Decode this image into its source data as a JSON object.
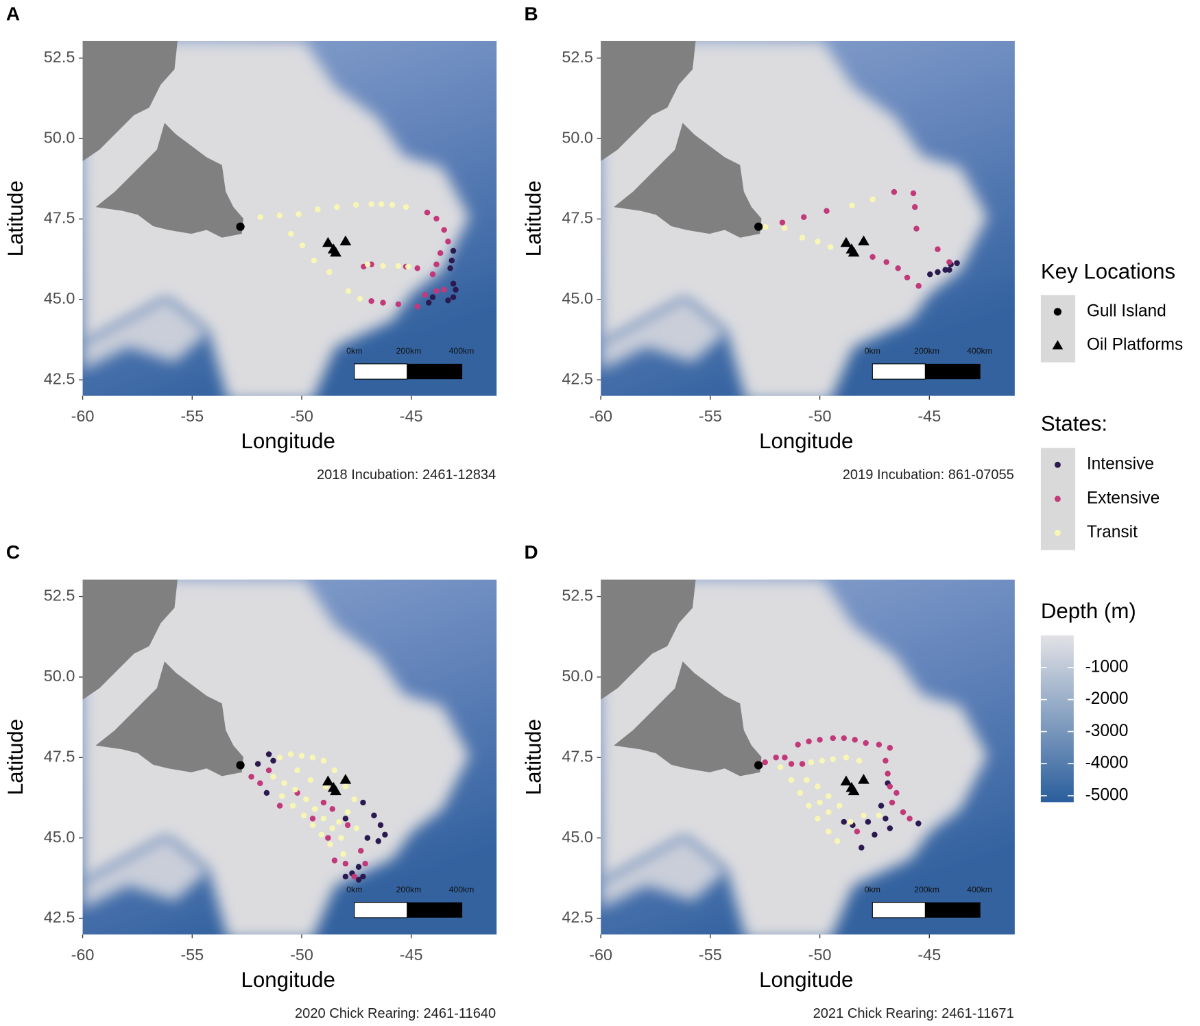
{
  "chart_data": [
    {
      "type": "scatter",
      "panel": "A",
      "caption": "2018 Incubation: 2461-12834",
      "x_label": "Longitude",
      "y_label": "Latitude",
      "xlim": [
        -60,
        -41.1
      ],
      "ylim": [
        42,
        53.03
      ],
      "xticks": [
        -60,
        -55,
        -50,
        -45
      ],
      "yticks": [
        42.5,
        {
          "value": 45,
          "label": "45.0"
        },
        47.5,
        {
          "value": 50,
          "label": "50.0"
        },
        52.5
      ],
      "scale_bar": [
        "0km",
        "200km",
        "400km"
      ],
      "series": [
        {
          "name": "Intensive",
          "color": "#2b1a4f",
          "x": [
            -43.08,
            -43.15,
            -43.22,
            -43.08,
            -42.97,
            -43.08,
            -43.32,
            -44.2,
            -44.02
          ],
          "values": [
            46.51,
            46.21,
            45.97,
            45.49,
            45.3,
            45.07,
            44.97,
            44.9,
            45.07
          ]
        },
        {
          "name": "Extensive",
          "color": "#c2397a",
          "x": [
            -44.27,
            -43.85,
            -43.5,
            -43.32,
            -43.67,
            -43.85,
            -44.02,
            -44.72,
            -45.24,
            -46.82,
            -47.17,
            -46.82,
            -46.29,
            -45.59,
            -44.72,
            -44.37,
            -43.85,
            -43.5
          ],
          "values": [
            47.7,
            47.51,
            47.16,
            46.8,
            46.44,
            46.09,
            45.78,
            45.97,
            46.02,
            46.09,
            46.02,
            44.95,
            44.9,
            44.85,
            44.78,
            45.14,
            45.26,
            45.3
          ]
        },
        {
          "name": "Transit",
          "color": "#f8f6b4",
          "x": [
            -51.89,
            -51.01,
            -50.14,
            -49.27,
            -48.39,
            -47.52,
            -46.82,
            -46.36,
            -45.87,
            -45.24,
            -50.49,
            -49.97,
            -49.44,
            -48.74,
            -47.87,
            -47.34,
            -46.99,
            -46.29,
            -45.59,
            -45.14
          ],
          "values": [
            47.56,
            47.61,
            47.65,
            47.8,
            47.87,
            47.94,
            47.96,
            47.96,
            47.94,
            47.87,
            47.04,
            46.68,
            46.21,
            45.85,
            45.26,
            45.02,
            46.09,
            46.04,
            46.04,
            46.02
          ]
        },
        {
          "name": "Gull Island",
          "marker": "circle",
          "color": "#000000",
          "x": [
            -52.8
          ],
          "values": [
            47.26
          ]
        },
        {
          "name": "Oil Platforms",
          "marker": "triangle",
          "color": "#000000",
          "x": [
            -48.8,
            -48.55,
            -48.45,
            -48.0
          ],
          "values": [
            46.75,
            46.55,
            46.45,
            46.8
          ]
        }
      ]
    },
    {
      "type": "scatter",
      "panel": "B",
      "caption": "2019 Incubation: 861-07055",
      "x_label": "Longitude",
      "y_label": "Latitude",
      "xlim": [
        -60,
        -41.1
      ],
      "ylim": [
        42,
        53.03
      ],
      "xticks": [
        -60,
        -55,
        -50,
        -45
      ],
      "yticks": [
        42.5,
        {
          "value": 45,
          "label": "45.0"
        },
        47.5,
        {
          "value": 50,
          "label": "50.0"
        },
        52.5
      ],
      "scale_bar": [
        "0km",
        "200km",
        "400km"
      ],
      "series": [
        {
          "name": "Intensive",
          "color": "#2b1a4f",
          "x": [
            -44.97,
            -44.62,
            -44.27,
            -44.02,
            -43.74,
            -44.09
          ],
          "values": [
            45.78,
            45.85,
            45.92,
            46.09,
            46.13,
            45.92
          ]
        },
        {
          "name": "Extensive",
          "color": "#c2397a",
          "x": [
            -51.71,
            -50.73,
            -49.69,
            -46.61,
            -45.73,
            -45.66,
            -45.59,
            -44.62,
            -44.09,
            -47.59,
            -46.96,
            -46.43,
            -46.01,
            -45.49
          ],
          "values": [
            47.39,
            47.56,
            47.75,
            48.34,
            48.3,
            47.87,
            47.2,
            46.56,
            46.16,
            46.32,
            46.16,
            45.97,
            45.68,
            45.42
          ]
        },
        {
          "name": "Transit",
          "color": "#f8f6b4",
          "x": [
            -52.48,
            -51.61,
            -50.8,
            -50.1,
            -49.51,
            -48.53,
            -47.59
          ],
          "values": [
            47.25,
            47.22,
            46.92,
            46.8,
            46.63,
            47.92,
            48.11
          ]
        },
        {
          "name": "Gull Island",
          "marker": "circle",
          "color": "#000000",
          "x": [
            -52.8
          ],
          "values": [
            47.26
          ]
        },
        {
          "name": "Oil Platforms",
          "marker": "triangle",
          "color": "#000000",
          "x": [
            -48.8,
            -48.55,
            -48.45,
            -48.0
          ],
          "values": [
            46.75,
            46.55,
            46.45,
            46.8
          ]
        }
      ]
    },
    {
      "type": "scatter",
      "panel": "C",
      "caption": "2020 Chick Rearing: 2461-11640",
      "x_label": "Longitude",
      "y_label": "Latitude",
      "xlim": [
        -60,
        -41.1
      ],
      "ylim": [
        42,
        53.03
      ],
      "xticks": [
        -60,
        -55,
        -50,
        -45
      ],
      "yticks": [
        42.5,
        {
          "value": 45,
          "label": "45.0"
        },
        47.5,
        {
          "value": 50,
          "label": "50.0"
        },
        52.5
      ],
      "scale_bar": [
        "0km",
        "200km",
        "400km"
      ],
      "series": [
        {
          "name": "Intensive",
          "color": "#2b1a4f",
          "x": [
            -51.5,
            -51.3,
            -52.0,
            -51.6,
            -47.2,
            -46.7,
            -46.4,
            -46.2,
            -46.5,
            -47.0,
            -47.4,
            -47.7,
            -47.4,
            -48.0,
            -47.2,
            -48.0
          ],
          "values": [
            47.6,
            47.4,
            47.3,
            46.4,
            46.1,
            45.7,
            45.4,
            45.1,
            44.9,
            45.0,
            43.7,
            43.9,
            44.1,
            43.8,
            43.8,
            45.6
          ]
        },
        {
          "name": "Extensive",
          "color": "#c2397a",
          "x": [
            -52.3,
            -51.9,
            -51.5,
            -51.0,
            -50.2,
            -49.5,
            -48.5,
            -48.0,
            -47.6,
            -48.8,
            -47.9,
            -47.3,
            -47.1,
            -49.0,
            -48.6
          ],
          "values": [
            46.9,
            46.7,
            47.1,
            46.0,
            46.4,
            45.6,
            44.3,
            44.2,
            43.8,
            45.0,
            45.4,
            44.6,
            44.2,
            46.1,
            45.9
          ]
        },
        {
          "name": "Transit",
          "color": "#f8f6b4",
          "x": [
            -51.0,
            -50.5,
            -50.0,
            -49.5,
            -49.0,
            -48.5,
            -48.0,
            -47.6,
            -51.3,
            -50.8,
            -50.3,
            -49.8,
            -49.4,
            -49.0,
            -48.6,
            -48.2,
            -50.9,
            -50.4,
            -49.9,
            -49.5,
            -49.1,
            -48.7,
            -48.3,
            -47.9,
            -48.9,
            -49.6,
            -50.2,
            -47.5,
            -48.1
          ],
          "values": [
            47.5,
            47.6,
            47.55,
            47.5,
            47.4,
            47.1,
            46.6,
            46.2,
            46.9,
            46.7,
            46.5,
            46.2,
            45.9,
            45.6,
            45.3,
            45.0,
            46.3,
            46.0,
            45.7,
            45.4,
            45.1,
            44.8,
            45.5,
            45.8,
            46.6,
            46.8,
            47.1,
            45.3,
            44.5
          ]
        },
        {
          "name": "Gull Island",
          "marker": "circle",
          "color": "#000000",
          "x": [
            -52.8
          ],
          "values": [
            47.26
          ]
        },
        {
          "name": "Oil Platforms",
          "marker": "triangle",
          "color": "#000000",
          "x": [
            -48.8,
            -48.55,
            -48.45,
            -48.0
          ],
          "values": [
            46.75,
            46.55,
            46.45,
            46.8
          ]
        }
      ]
    },
    {
      "type": "scatter",
      "panel": "D",
      "caption": "2021 Chick Rearing: 2461-11671",
      "x_label": "Longitude",
      "y_label": "Latitude",
      "xlim": [
        -60,
        -41.1
      ],
      "ylim": [
        42,
        53.03
      ],
      "xticks": [
        -60,
        -55,
        -50,
        -45
      ],
      "yticks": [
        42.5,
        {
          "value": 45,
          "label": "45.0"
        },
        47.5,
        {
          "value": 50,
          "label": "50.0"
        },
        52.5
      ],
      "scale_bar": [
        "0km",
        "200km",
        "400km"
      ],
      "series": [
        {
          "name": "Intensive",
          "color": "#2b1a4f",
          "x": [
            -48.9,
            -48.5,
            -48.1,
            -47.5,
            -47.0,
            -46.8,
            -47.2,
            -46.9,
            -45.5,
            -47.8
          ],
          "values": [
            45.5,
            45.4,
            44.7,
            45.1,
            45.6,
            45.3,
            46.0,
            46.7,
            45.45,
            45.5
          ]
        },
        {
          "name": "Extensive",
          "color": "#c2397a",
          "x": [
            -52.5,
            -52.0,
            -51.6,
            -51.0,
            -50.5,
            -50.0,
            -49.4,
            -48.9,
            -48.4,
            -47.9,
            -47.3,
            -46.8,
            -47.0,
            -46.9,
            -46.8,
            -46.7,
            -46.2,
            -45.9,
            -46.5,
            -48.3,
            -51.3,
            -50.8
          ],
          "values": [
            47.35,
            47.5,
            47.5,
            47.9,
            48.0,
            48.05,
            48.1,
            48.1,
            48.05,
            47.95,
            47.9,
            47.8,
            47.4,
            47.0,
            46.6,
            46.1,
            45.8,
            45.6,
            46.4,
            45.2,
            47.3,
            47.3
          ]
        },
        {
          "name": "Transit",
          "color": "#f8f6b4",
          "x": [
            -51.8,
            -51.3,
            -50.9,
            -50.5,
            -50.1,
            -49.6,
            -49.2,
            -50.4,
            -49.9,
            -49.4,
            -48.8,
            -48.2,
            -50.6,
            -50.1,
            -49.6,
            -49.1,
            -48.6,
            -48.0,
            -47.3,
            -50.0,
            -49.6
          ],
          "values": [
            47.2,
            46.8,
            46.4,
            46.0,
            45.6,
            45.2,
            44.9,
            47.35,
            47.4,
            47.45,
            47.5,
            47.4,
            46.8,
            46.6,
            46.3,
            46.0,
            45.5,
            45.7,
            45.7,
            46.1,
            45.8
          ]
        },
        {
          "name": "Gull Island",
          "marker": "circle",
          "color": "#000000",
          "x": [
            -52.8
          ],
          "values": [
            47.26
          ]
        },
        {
          "name": "Oil Platforms",
          "marker": "triangle",
          "color": "#000000",
          "x": [
            -48.8,
            -48.55,
            -48.45,
            -48.0
          ],
          "values": [
            46.75,
            46.55,
            46.45,
            46.8
          ]
        }
      ]
    }
  ],
  "legend": {
    "key_title": "Key Locations",
    "states_title": "States:",
    "depth_title": "Depth (m)",
    "depth_ticks": [
      -1000,
      -2000,
      -3000,
      -4000,
      -5000
    ],
    "depth_lim": [
      0,
      -5200
    ],
    "depth_colors": [
      "#e2e2e6",
      "#2a5e9c"
    ]
  }
}
